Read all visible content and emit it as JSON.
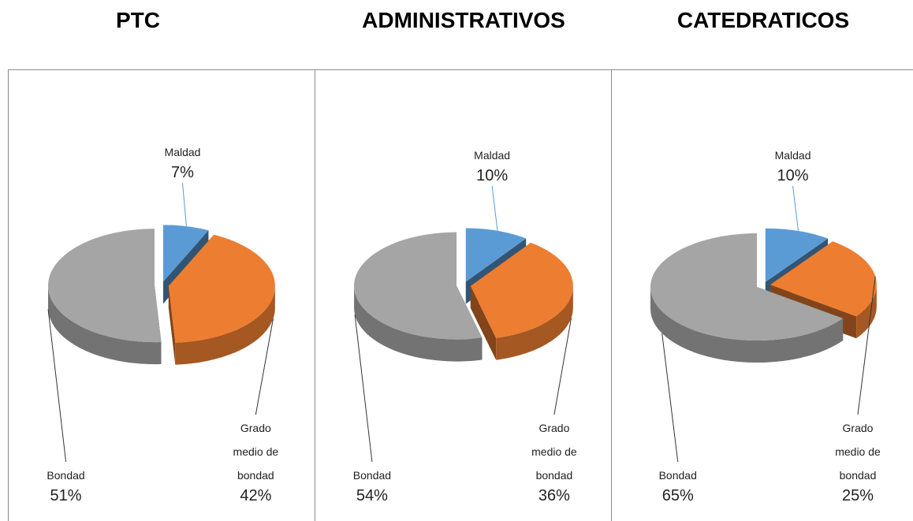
{
  "chart_data": [
    {
      "type": "pie",
      "title": "PTC",
      "categories": [
        "Maldad",
        "Grado medio de bondad",
        "Bondad"
      ],
      "values": [
        7,
        42,
        51
      ],
      "value_labels": [
        "7%",
        "42%",
        "51%"
      ],
      "colors": [
        "#5b9bd5",
        "#ed7d31",
        "#a5a5a5"
      ]
    },
    {
      "type": "pie",
      "title": "ADMINISTRATIVOS",
      "categories": [
        "Maldad",
        "Grado medio de bondad",
        "Bondad"
      ],
      "values": [
        10,
        36,
        54
      ],
      "value_labels": [
        "10%",
        "36%",
        "54%"
      ],
      "colors": [
        "#5b9bd5",
        "#ed7d31",
        "#a5a5a5"
      ]
    },
    {
      "type": "pie",
      "title": "CATEDRATICOS",
      "categories": [
        "Maldad",
        "Grado medio de bondad",
        "Bondad"
      ],
      "values": [
        10,
        25,
        65
      ],
      "value_labels": [
        "10%",
        "25%",
        "65%"
      ],
      "colors": [
        "#5b9bd5",
        "#ed7d31",
        "#a5a5a5"
      ]
    }
  ]
}
